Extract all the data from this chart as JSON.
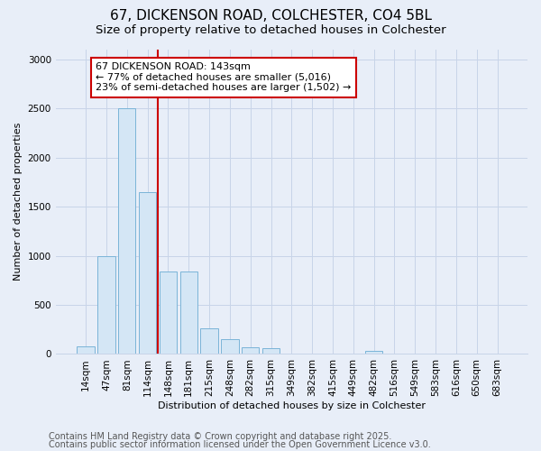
{
  "title_line1": "67, DICKENSON ROAD, COLCHESTER, CO4 5BL",
  "title_line2": "Size of property relative to detached houses in Colchester",
  "xlabel": "Distribution of detached houses by size in Colchester",
  "ylabel": "Number of detached properties",
  "categories": [
    "14sqm",
    "47sqm",
    "81sqm",
    "114sqm",
    "148sqm",
    "181sqm",
    "215sqm",
    "248sqm",
    "282sqm",
    "315sqm",
    "349sqm",
    "382sqm",
    "415sqm",
    "449sqm",
    "482sqm",
    "516sqm",
    "549sqm",
    "583sqm",
    "616sqm",
    "650sqm",
    "683sqm"
  ],
  "values": [
    75,
    1000,
    2500,
    1650,
    840,
    840,
    265,
    155,
    70,
    55,
    0,
    0,
    0,
    0,
    28,
    0,
    0,
    0,
    0,
    0,
    0
  ],
  "bar_color": "#d4e6f5",
  "bar_edge_color": "#7ab4d8",
  "vline_x_index": 3.5,
  "vline_color": "#cc0000",
  "annotation_text": "67 DICKENSON ROAD: 143sqm\n← 77% of detached houses are smaller (5,016)\n23% of semi-detached houses are larger (1,502) →",
  "annotation_box_facecolor": "#ffffff",
  "annotation_box_edgecolor": "#cc0000",
  "ylim": [
    0,
    3100
  ],
  "yticks": [
    0,
    500,
    1000,
    1500,
    2000,
    2500,
    3000
  ],
  "bg_color": "#e8eef8",
  "grid_color": "#c8d4e8",
  "title_fontsize": 11,
  "subtitle_fontsize": 9.5,
  "annotation_fontsize": 8,
  "footer_fontsize": 7,
  "axis_label_fontsize": 8,
  "tick_fontsize": 7.5,
  "footer_line1": "Contains HM Land Registry data © Crown copyright and database right 2025.",
  "footer_line2": "Contains public sector information licensed under the Open Government Licence v3.0."
}
